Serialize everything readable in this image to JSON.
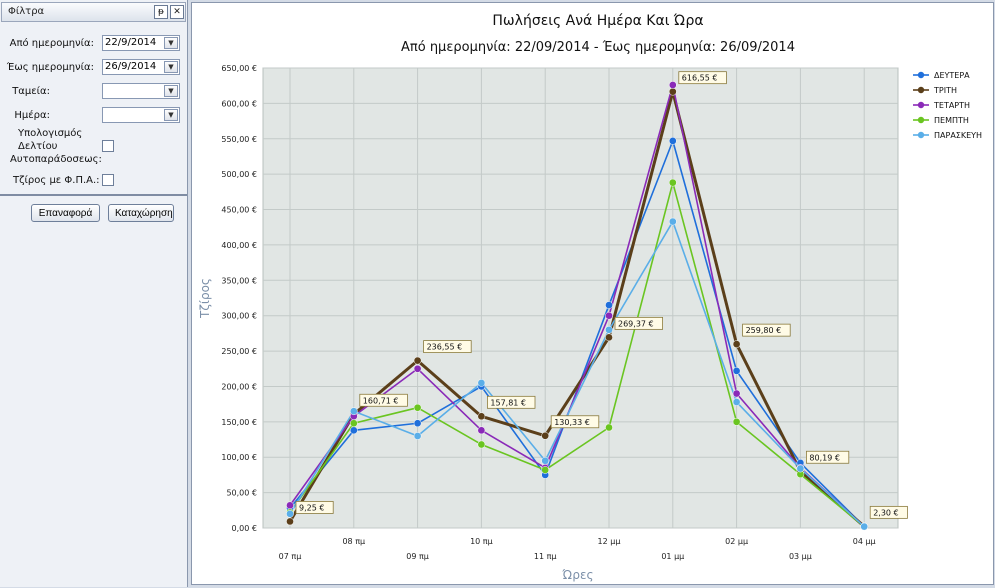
{
  "filter_panel": {
    "title": "Φίλτρα",
    "pin_label": "ᵽ",
    "close_label": "✕",
    "from_date_label": "Από ημερομηνία:",
    "from_date_value": "22/9/2014",
    "to_date_label": "Έως ημερομηνία:",
    "to_date_value": "26/9/2014",
    "cashier_label": "Ταμεία:",
    "cashier_value": "",
    "day_label": "Ημέρα:",
    "day_value": "",
    "receipt_calc_label_1": "Υπολογισμός",
    "receipt_calc_label_2": "Δελτίου",
    "receipt_calc_label_3": "Αυτοπαράδοσεως:",
    "vat_label": "Τζίρος με Φ.Π.Α.:",
    "reset_button": "Επαναφορά",
    "submit_button": "Καταχώρηση"
  },
  "chart_data": {
    "type": "line",
    "title": "Πωλήσεις Ανά Ημέρα Και Ώρα",
    "subtitle": "Από ημερομηνία: 22/09/2014 - Έως ημερομηνία: 26/09/2014",
    "xlabel": "Ώρες",
    "ylabel": "Τζίρος",
    "categories": [
      "07 πμ",
      "08 πμ",
      "09 πμ",
      "10 πμ",
      "11 πμ",
      "12 μμ",
      "01 μμ",
      "02 μμ",
      "03 μμ",
      "04 μμ"
    ],
    "ylim": [
      0,
      650
    ],
    "yticks": [
      "0,00 €",
      "50,00 €",
      "100,00 €",
      "150,00 €",
      "200,00 €",
      "250,00 €",
      "300,00 €",
      "350,00 €",
      "400,00 €",
      "450,00 €",
      "500,00 €",
      "550,00 €",
      "600,00 €",
      "650,00 €"
    ],
    "grid": true,
    "legend": "top-right",
    "series": [
      {
        "name": "ΔΕΥΤΕΡΑ",
        "color": "#1f6fdb",
        "values": [
          28,
          138,
          148,
          200,
          75,
          315,
          547,
          222,
          92,
          2
        ]
      },
      {
        "name": "ΤΡΙΤΗ",
        "color": "#5b3f1a",
        "values": [
          9.25,
          160.71,
          236.55,
          157.81,
          130.33,
          269.37,
          616.55,
          259.8,
          80.19,
          2.3
        ]
      },
      {
        "name": "ΤΕΤΑΡΤΗ",
        "color": "#8a2ab8",
        "values": [
          32,
          158,
          225,
          138,
          85,
          300,
          626,
          190,
          85,
          2
        ]
      },
      {
        "name": "ΠΕΜΠΤΗ",
        "color": "#6ac521",
        "values": [
          22,
          148,
          170,
          118,
          82,
          142,
          488,
          150,
          76,
          2
        ]
      },
      {
        "name": "ΠΑΡΑΣΚΕΥΗ",
        "color": "#5aaee8",
        "values": [
          20,
          165,
          130,
          205,
          95,
          280,
          433,
          178,
          84,
          2
        ]
      }
    ],
    "data_labels": [
      {
        "index": 0,
        "text": "9,25 €"
      },
      {
        "index": 1,
        "text": "160,71 €"
      },
      {
        "index": 2,
        "text": "236,55 €"
      },
      {
        "index": 3,
        "text": "157,81 €"
      },
      {
        "index": 4,
        "text": "130,33 €"
      },
      {
        "index": 5,
        "text": "269,37 €"
      },
      {
        "index": 6,
        "text": "616,55 €"
      },
      {
        "index": 7,
        "text": "259,80 €"
      },
      {
        "index": 8,
        "text": "80,19 €"
      },
      {
        "index": 9,
        "text": "2,30 €"
      }
    ]
  }
}
